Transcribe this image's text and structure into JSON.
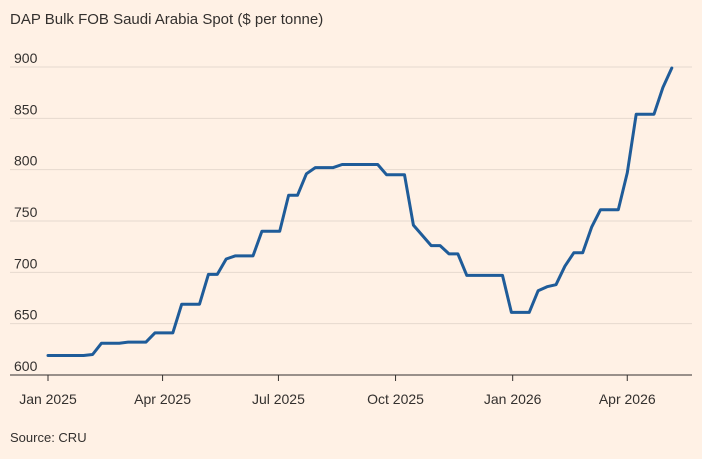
{
  "chart_data": {
    "type": "line",
    "title": "DAP Bulk FOB Saudi Arabia Spot ($ per tonne)",
    "source": "Source: CRU",
    "ylim": [
      600,
      900
    ],
    "yticks": [
      600,
      650,
      700,
      750,
      800,
      850,
      900
    ],
    "xticks": [
      {
        "label": "Jan 2025",
        "date": "2025-01-01"
      },
      {
        "label": "Apr 2025",
        "date": "2025-04-01"
      },
      {
        "label": "Jul 2025",
        "date": "2025-07-01"
      },
      {
        "label": "Oct 2025",
        "date": "2025-10-01"
      },
      {
        "label": "Jan 2026",
        "date": "2026-01-01"
      },
      {
        "label": "Apr 2026",
        "date": "2026-04-01"
      }
    ],
    "xlim": [
      "2025-01-01",
      "2026-05-14"
    ],
    "grid": true,
    "colors": {
      "background": "#fff1e5",
      "line": "#1f5c99",
      "grid": "#e6d9ce",
      "text": "#33302e"
    },
    "series": [
      {
        "name": "",
        "points": [
          [
            "2025-01-01",
            619
          ],
          [
            "2025-01-08",
            619
          ],
          [
            "2025-01-15",
            619
          ],
          [
            "2025-01-22",
            619
          ],
          [
            "2025-01-29",
            619
          ],
          [
            "2025-02-05",
            620
          ],
          [
            "2025-02-12",
            631
          ],
          [
            "2025-02-19",
            631
          ],
          [
            "2025-02-26",
            631
          ],
          [
            "2025-03-05",
            632
          ],
          [
            "2025-03-12",
            632
          ],
          [
            "2025-03-19",
            632
          ],
          [
            "2025-03-26",
            641
          ],
          [
            "2025-04-02",
            641
          ],
          [
            "2025-04-09",
            641
          ],
          [
            "2025-04-16",
            669
          ],
          [
            "2025-04-23",
            669
          ],
          [
            "2025-04-30",
            669
          ],
          [
            "2025-05-07",
            698
          ],
          [
            "2025-05-14",
            698
          ],
          [
            "2025-05-21",
            713
          ],
          [
            "2025-05-28",
            716
          ],
          [
            "2025-06-04",
            716
          ],
          [
            "2025-06-11",
            716
          ],
          [
            "2025-06-18",
            740
          ],
          [
            "2025-06-25",
            740
          ],
          [
            "2025-07-02",
            740
          ],
          [
            "2025-07-09",
            775
          ],
          [
            "2025-07-16",
            775
          ],
          [
            "2025-07-23",
            796
          ],
          [
            "2025-07-30",
            802
          ],
          [
            "2025-08-06",
            802
          ],
          [
            "2025-08-13",
            802
          ],
          [
            "2025-08-20",
            805
          ],
          [
            "2025-08-27",
            805
          ],
          [
            "2025-09-03",
            805
          ],
          [
            "2025-09-10",
            805
          ],
          [
            "2025-09-17",
            805
          ],
          [
            "2025-09-24",
            795
          ],
          [
            "2025-10-01",
            795
          ],
          [
            "2025-10-08",
            795
          ],
          [
            "2025-10-15",
            746
          ],
          [
            "2025-10-22",
            736
          ],
          [
            "2025-10-29",
            726
          ],
          [
            "2025-11-05",
            726
          ],
          [
            "2025-11-12",
            718
          ],
          [
            "2025-11-19",
            718
          ],
          [
            "2025-11-26",
            697
          ],
          [
            "2025-12-03",
            697
          ],
          [
            "2025-12-10",
            697
          ],
          [
            "2025-12-17",
            697
          ],
          [
            "2025-12-24",
            697
          ],
          [
            "2025-12-31",
            661
          ],
          [
            "2026-01-07",
            661
          ],
          [
            "2026-01-14",
            661
          ],
          [
            "2026-01-21",
            682
          ],
          [
            "2026-01-28",
            686
          ],
          [
            "2026-02-04",
            688
          ],
          [
            "2026-02-11",
            706
          ],
          [
            "2026-02-18",
            719
          ],
          [
            "2026-02-25",
            719
          ],
          [
            "2026-03-04",
            744
          ],
          [
            "2026-03-11",
            761
          ],
          [
            "2026-03-18",
            761
          ],
          [
            "2026-03-25",
            761
          ],
          [
            "2026-04-01",
            797
          ],
          [
            "2026-04-08",
            854
          ],
          [
            "2026-04-15",
            854
          ],
          [
            "2026-04-22",
            854
          ],
          [
            "2026-04-29",
            880
          ],
          [
            "2026-05-06",
            899
          ]
        ]
      }
    ]
  }
}
